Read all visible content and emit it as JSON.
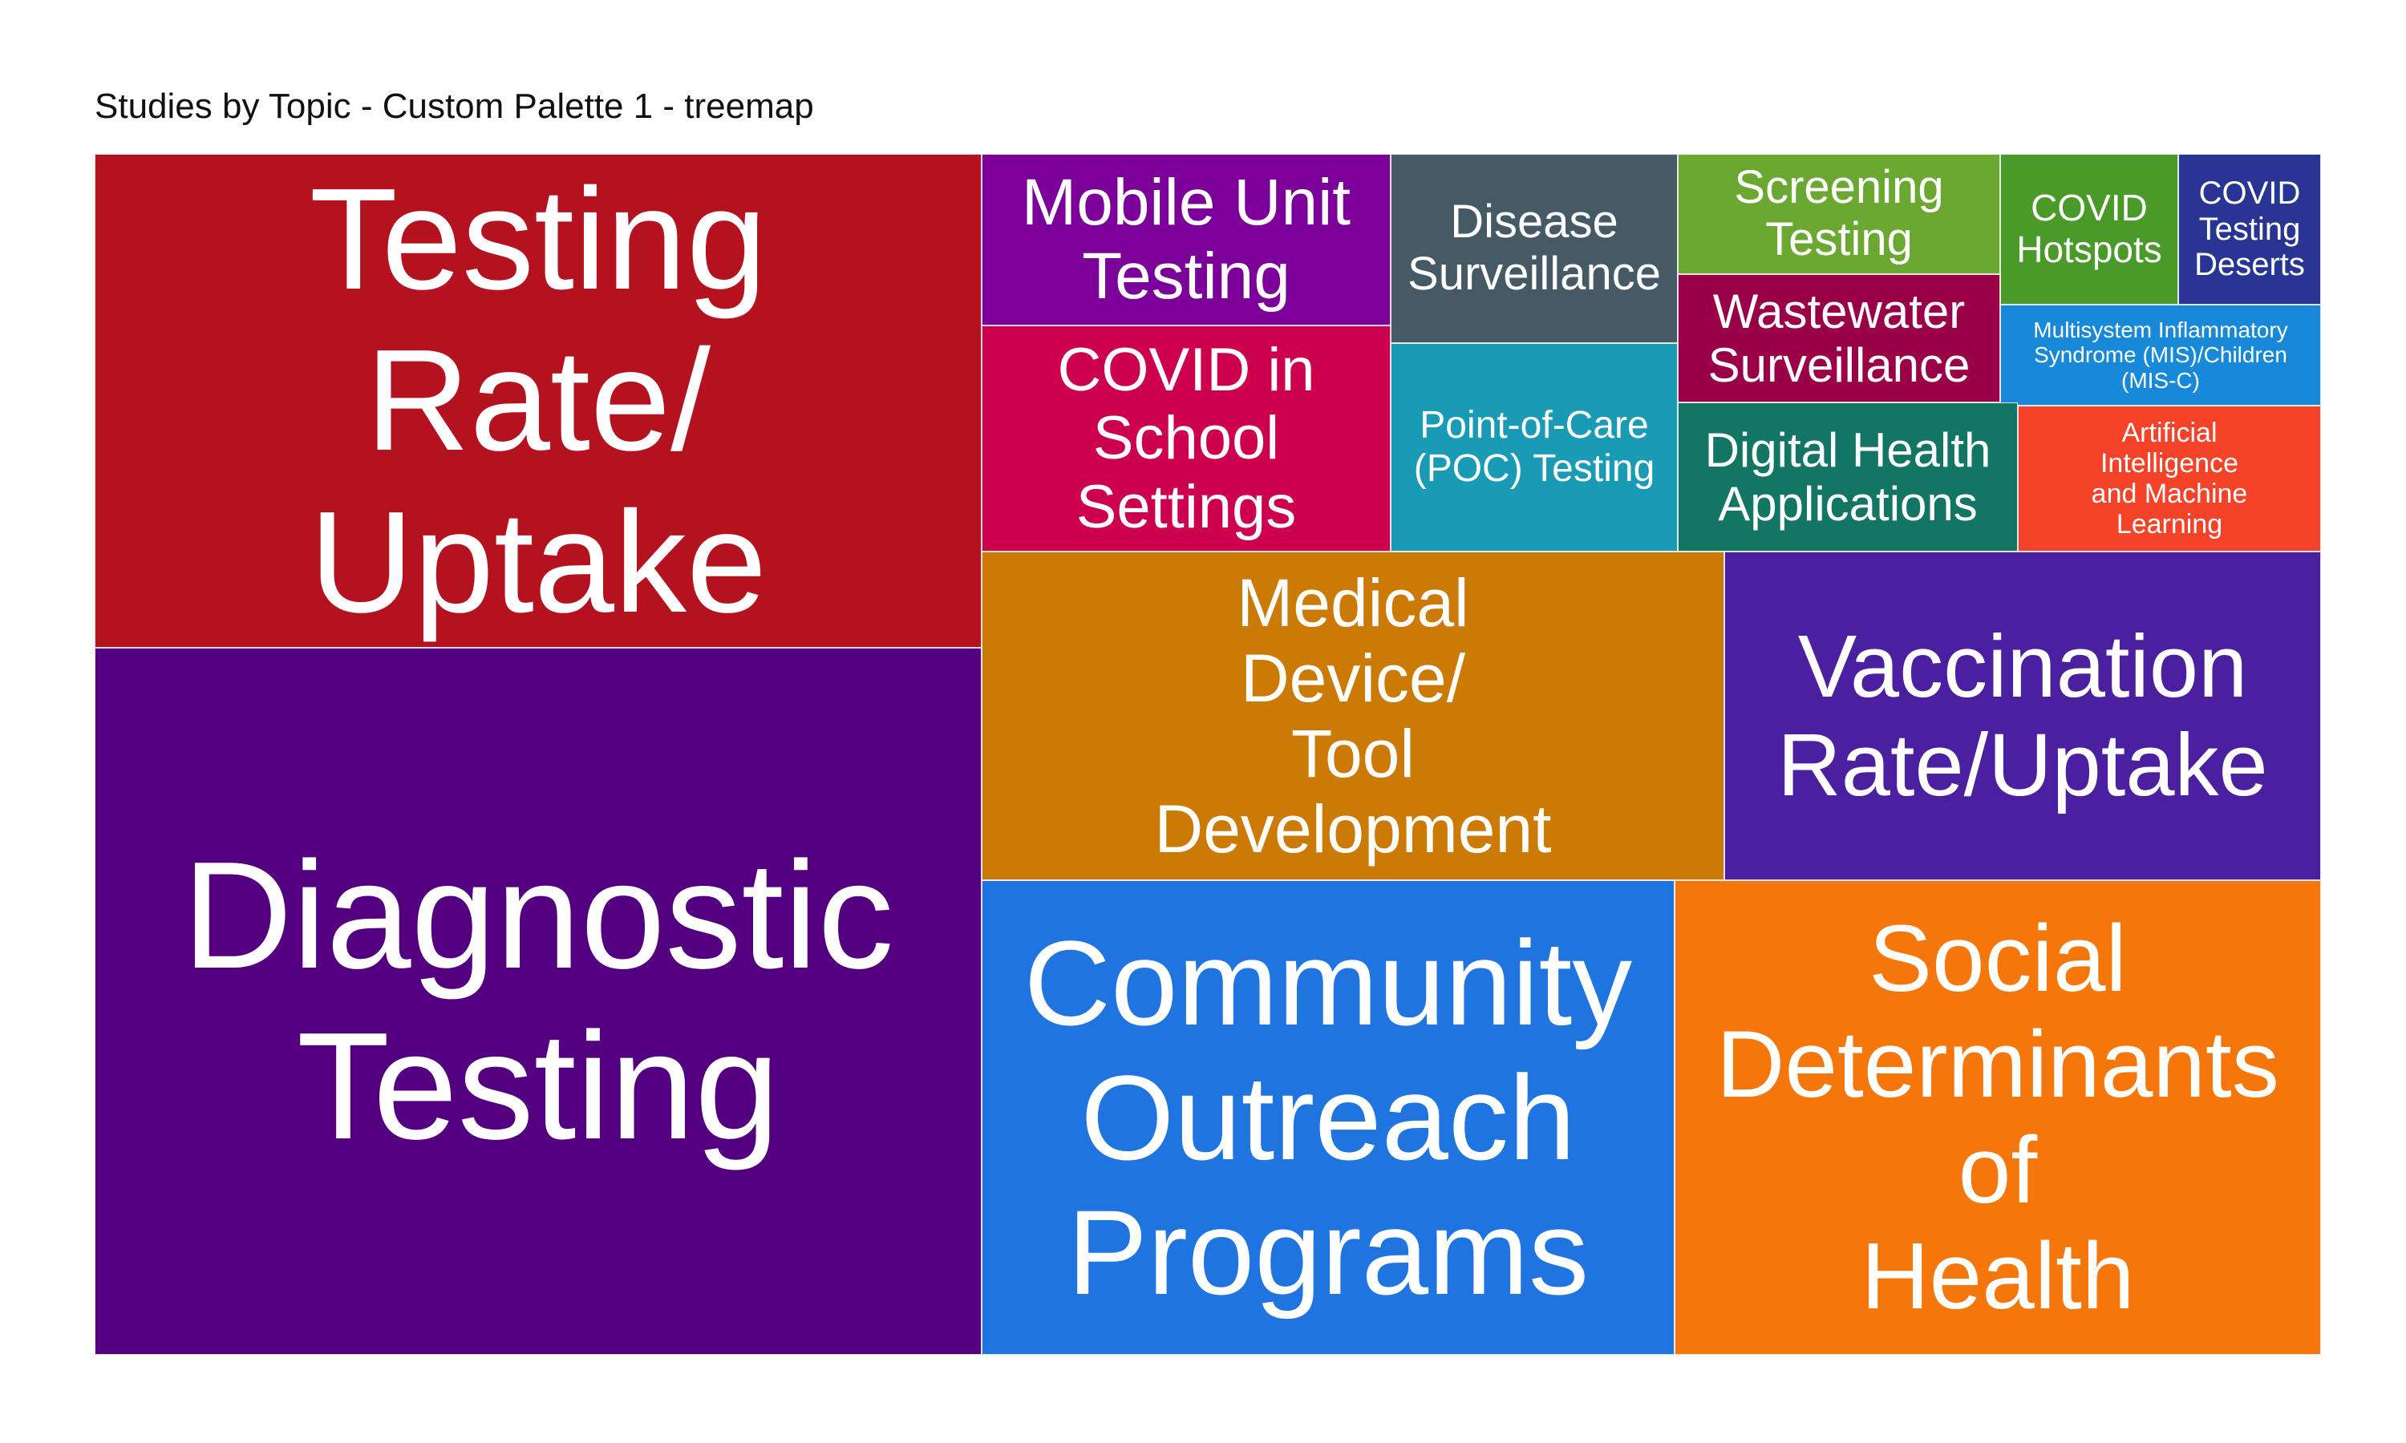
{
  "chart_data": {
    "type": "treemap",
    "title": "Studies by Topic - Custom Palette 1 - treemap",
    "tiles": [
      {
        "label": "Testing\nRate/\nUptake",
        "color": "#B5121F"
      },
      {
        "label": "Diagnostic\nTesting",
        "color": "#530080"
      },
      {
        "label": "Mobile Unit\nTesting",
        "color": "#7A0099"
      },
      {
        "label": "COVID in\nSchool\nSettings",
        "color": "#CC004D"
      },
      {
        "label": "Disease\nSurveillance",
        "color": "#455A64"
      },
      {
        "label": "Point-of-Care\n(POC) Testing",
        "color": "#1A9BB5"
      },
      {
        "label": "Screening\nTesting",
        "color": "#6AA832"
      },
      {
        "label": "Wastewater\nSurveillance",
        "color": "#990047"
      },
      {
        "label": "COVID\nHotspots",
        "color": "#4A9A2A"
      },
      {
        "label": "COVID\nTesting\nDeserts",
        "color": "#283593"
      },
      {
        "label": "Multisystem Inflammatory\nSyndrome (MIS)/Children\n(MIS-C)",
        "color": "#1789D8"
      },
      {
        "label": "Digital Health\nApplications",
        "color": "#137563"
      },
      {
        "label": "Artificial\nIntelligence\nand Machine\nLearning",
        "color": "#F44329"
      },
      {
        "label": "Medical\nDevice/\nTool\nDevelopment",
        "color": "#CC7A06"
      },
      {
        "label": "Vaccination\nRate/Uptake",
        "color": "#4A1FA0"
      },
      {
        "label": "Community\nOutreach\nPrograms",
        "color": "#1F74DF"
      },
      {
        "label": "Social\nDeterminants\nof\nHealth",
        "color": "#F5760B"
      }
    ]
  }
}
